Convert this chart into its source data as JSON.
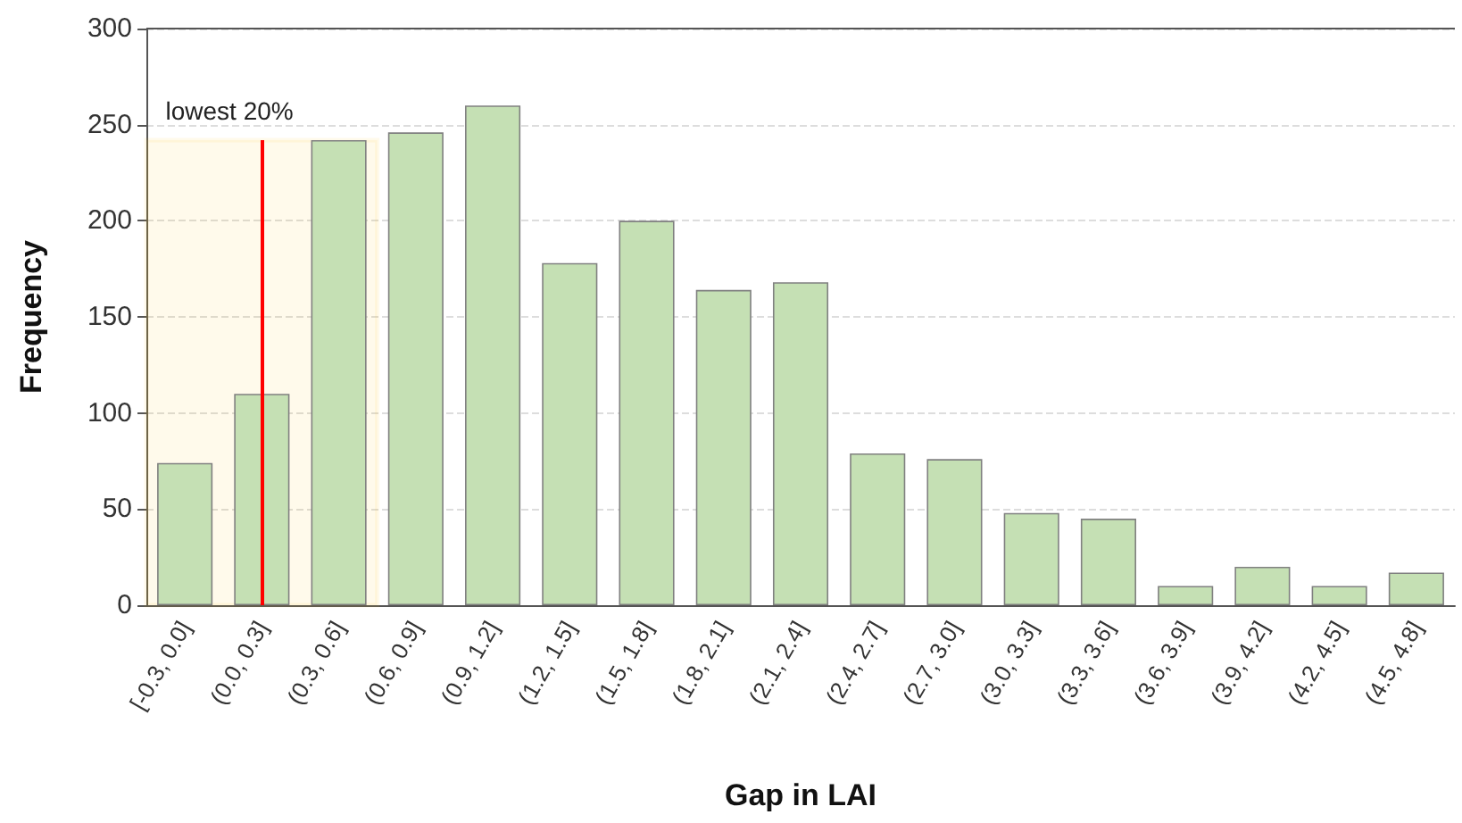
{
  "chart_data": {
    "type": "bar",
    "xlabel": "Gap in LAI",
    "ylabel": "Frequency",
    "categories": [
      "[-0.3, 0.0]",
      "(0.0, 0.3]",
      "(0.3, 0.6]",
      "(0.6, 0.9]",
      "(0.9, 1.2]",
      "(1.2, 1.5]",
      "(1.5, 1.8]",
      "(1.8, 2.1]",
      "(2.1, 2.4]",
      "(2.4, 2.7]",
      "(2.7, 3.0]",
      "(3.0, 3.3]",
      "(3.3, 3.6]",
      "(3.6, 3.9]",
      "(3.9, 4.2]",
      "(4.2, 4.5]",
      "(4.5, 4.8]"
    ],
    "values": [
      74,
      110,
      242,
      246,
      260,
      178,
      200,
      164,
      168,
      79,
      76,
      48,
      45,
      10,
      20,
      10,
      17
    ],
    "color": "#c5e0b4",
    "ylim": [
      0,
      300
    ],
    "yticks": [
      0,
      50,
      100,
      150,
      200,
      250,
      300
    ],
    "grid": "y",
    "ref_lines": [
      {
        "axis": "x",
        "value": "(0.0, 0.3]",
        "color": "#ff0000"
      }
    ],
    "bands": [
      {
        "axis": "x",
        "from": "[-0.3, 0.0]",
        "to": "(0.3, 0.6]",
        "label": "lowest 20%",
        "color": "#ffc000"
      }
    ]
  }
}
